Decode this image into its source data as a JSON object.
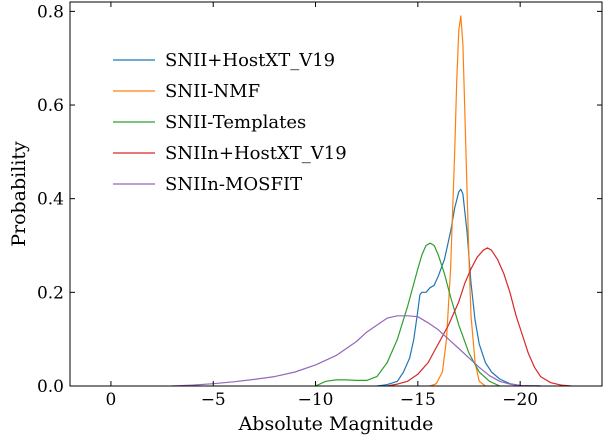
{
  "chart_data": {
    "type": "line",
    "title": "",
    "xlabel": "Absolute Magnitude",
    "ylabel": "Probability",
    "xlim": [
      2,
      -24
    ],
    "ylim": [
      0,
      0.82
    ],
    "x_inverted": true,
    "grid": false,
    "legend_position": "upper-left",
    "xticks": [
      0,
      -5,
      -10,
      -15,
      -20
    ],
    "xtick_labels": [
      "0",
      "−5",
      "−10",
      "−15",
      "−20"
    ],
    "yticks": [
      0.0,
      0.2,
      0.4,
      0.6,
      0.8
    ],
    "ytick_labels": [
      "0.0",
      "0.2",
      "0.4",
      "0.6",
      "0.8"
    ],
    "series": [
      {
        "name": "SNII+HostXT_V19",
        "color": "#1f77b4",
        "x": [
          -13.0,
          -13.5,
          -14.0,
          -14.3,
          -14.6,
          -14.8,
          -15.0,
          -15.1,
          -15.2,
          -15.4,
          -15.6,
          -15.8,
          -16.0,
          -16.3,
          -16.6,
          -16.8,
          -17.0,
          -17.1,
          -17.2,
          -17.4,
          -17.6,
          -17.8,
          -18.0,
          -18.3,
          -18.6,
          -19.0,
          -19.5,
          -20.0,
          -21.0
        ],
        "y": [
          0.0,
          0.003,
          0.01,
          0.03,
          0.06,
          0.1,
          0.16,
          0.195,
          0.2,
          0.2,
          0.21,
          0.215,
          0.235,
          0.27,
          0.33,
          0.38,
          0.415,
          0.42,
          0.41,
          0.33,
          0.22,
          0.14,
          0.09,
          0.05,
          0.03,
          0.015,
          0.005,
          0.001,
          0.0
        ]
      },
      {
        "name": "SNII-NMF",
        "color": "#ff7f0e",
        "x": [
          -15.6,
          -15.9,
          -16.2,
          -16.4,
          -16.6,
          -16.8,
          -16.9,
          -17.0,
          -17.1,
          -17.2,
          -17.3,
          -17.4,
          -17.5,
          -17.6,
          -17.8,
          -18.0,
          -18.3
        ],
        "y": [
          0.0,
          0.005,
          0.03,
          0.1,
          0.25,
          0.5,
          0.65,
          0.76,
          0.79,
          0.73,
          0.58,
          0.42,
          0.27,
          0.15,
          0.05,
          0.01,
          0.0
        ]
      },
      {
        "name": "SNII-Templates",
        "color": "#2ca02c",
        "x": [
          -10.0,
          -10.5,
          -11.0,
          -11.5,
          -12.0,
          -12.5,
          -13.0,
          -13.5,
          -14.0,
          -14.5,
          -15.0,
          -15.2,
          -15.4,
          -15.6,
          -15.8,
          -16.0,
          -16.3,
          -16.6,
          -17.0,
          -17.5,
          -18.0,
          -18.5,
          -19.0
        ],
        "y": [
          0.0,
          0.01,
          0.013,
          0.013,
          0.012,
          0.012,
          0.02,
          0.05,
          0.1,
          0.17,
          0.25,
          0.28,
          0.3,
          0.305,
          0.3,
          0.28,
          0.24,
          0.19,
          0.13,
          0.07,
          0.03,
          0.01,
          0.0
        ]
      },
      {
        "name": "SNIIn+HostXT_V19",
        "color": "#d62728",
        "x": [
          -13.5,
          -14.0,
          -14.5,
          -15.0,
          -15.5,
          -16.0,
          -16.5,
          -17.0,
          -17.3,
          -17.6,
          -17.9,
          -18.2,
          -18.4,
          -18.6,
          -18.9,
          -19.2,
          -19.5,
          -19.8,
          -20.1,
          -20.4,
          -20.7,
          -21.0,
          -21.5,
          -22.0,
          -22.5
        ],
        "y": [
          0.0,
          0.004,
          0.01,
          0.025,
          0.05,
          0.09,
          0.13,
          0.18,
          0.22,
          0.25,
          0.275,
          0.29,
          0.295,
          0.29,
          0.27,
          0.24,
          0.2,
          0.15,
          0.11,
          0.07,
          0.04,
          0.02,
          0.007,
          0.002,
          0.0
        ]
      },
      {
        "name": "SNIIn-MOSFIT",
        "color": "#9467bd",
        "x": [
          -3.0,
          -4.0,
          -5.0,
          -6.0,
          -7.0,
          -8.0,
          -9.0,
          -10.0,
          -11.0,
          -12.0,
          -12.5,
          -13.0,
          -13.5,
          -14.0,
          -14.5,
          -15.0,
          -15.5,
          -16.0,
          -16.5,
          -17.0,
          -17.5,
          -18.0,
          -18.5,
          -19.0,
          -19.5,
          -20.0,
          -21.0
        ],
        "y": [
          0.0,
          0.002,
          0.005,
          0.009,
          0.014,
          0.02,
          0.03,
          0.045,
          0.065,
          0.095,
          0.115,
          0.13,
          0.145,
          0.15,
          0.15,
          0.148,
          0.135,
          0.12,
          0.1,
          0.08,
          0.06,
          0.04,
          0.022,
          0.01,
          0.004,
          0.001,
          0.0
        ]
      }
    ]
  }
}
